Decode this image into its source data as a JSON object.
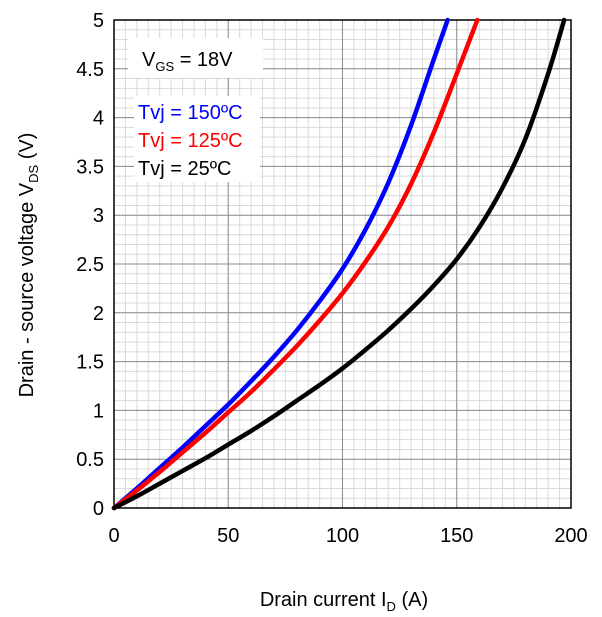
{
  "chart_data": {
    "type": "line",
    "xlabel": {
      "main": "Drain current I",
      "sub": "D",
      "unit": " (A)"
    },
    "ylabel": {
      "main": "Drain - source voltage V",
      "sub": "DS",
      "unit": " (V)"
    },
    "xlim": [
      0,
      200
    ],
    "ylim": [
      0,
      5
    ],
    "x_ticks": [
      "0",
      "50",
      "100",
      "150",
      "200"
    ],
    "y_ticks": [
      "0",
      "0.5",
      "1",
      "1.5",
      "2",
      "2.5",
      "3",
      "3.5",
      "4",
      "4.5",
      "5"
    ],
    "x_minor_step": 5,
    "y_minor_step": 0.1,
    "grid": true,
    "condition": {
      "main": "V",
      "sub": "GS",
      "rest": " = 18V"
    },
    "series": [
      {
        "name": "Tvj = 150ºC",
        "color": "#0000ff",
        "x": [
          0,
          10,
          20,
          30,
          40,
          50,
          60,
          70,
          80,
          90,
          100,
          110,
          120,
          130,
          140,
          146
        ],
        "y": [
          0,
          0.2,
          0.41,
          0.62,
          0.84,
          1.06,
          1.3,
          1.55,
          1.82,
          2.12,
          2.45,
          2.85,
          3.33,
          3.92,
          4.6,
          5.0
        ]
      },
      {
        "name": "Tvj = 125ºC",
        "color": "#ff0000",
        "x": [
          0,
          10,
          20,
          30,
          40,
          50,
          60,
          70,
          80,
          90,
          100,
          110,
          120,
          130,
          140,
          150,
          159
        ],
        "y": [
          0,
          0.18,
          0.37,
          0.57,
          0.77,
          0.98,
          1.19,
          1.42,
          1.66,
          1.92,
          2.2,
          2.52,
          2.88,
          3.32,
          3.85,
          4.45,
          5.0
        ]
      },
      {
        "name": "Tvj = 25ºC",
        "color": "#000000",
        "x": [
          0,
          10,
          20,
          30,
          40,
          50,
          60,
          70,
          80,
          90,
          100,
          110,
          120,
          130,
          140,
          150,
          160,
          170,
          180,
          190,
          197
        ],
        "y": [
          0,
          0.12,
          0.25,
          0.38,
          0.51,
          0.65,
          0.79,
          0.94,
          1.1,
          1.26,
          1.43,
          1.62,
          1.82,
          2.04,
          2.28,
          2.55,
          2.88,
          3.28,
          3.78,
          4.45,
          5.0
        ]
      }
    ]
  }
}
